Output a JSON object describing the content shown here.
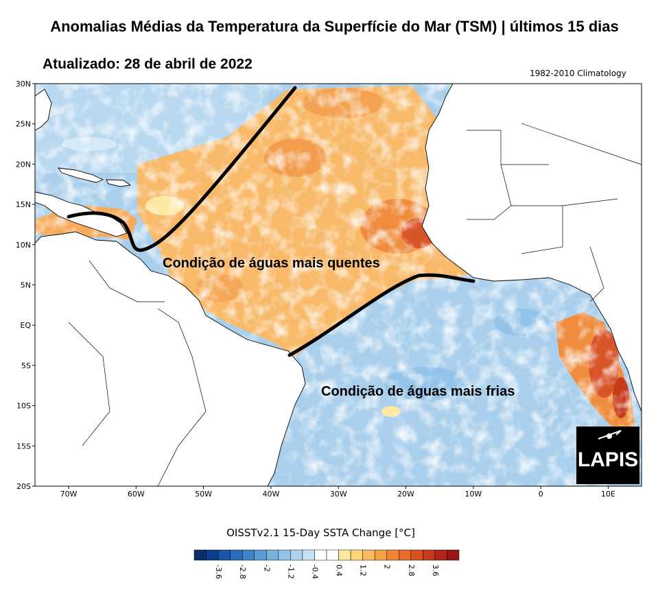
{
  "title": "Anomalias Médias da Temperatura da Superfície do Mar  (TSM) | últimos 15 dias",
  "updated": "Atualizado: 28 de abril de 2022",
  "climatology": "1982-2010 Climatology",
  "map": {
    "lon_labels": [
      "70W",
      "60W",
      "50W",
      "40W",
      "30W",
      "20W",
      "10W",
      "0",
      "10E"
    ],
    "lat_labels": [
      "30N",
      "25N",
      "20N",
      "15N",
      "10N",
      "5N",
      "EQ",
      "5S",
      "10S",
      "15S",
      "20S"
    ],
    "annotation_warm": "Condição de águas mais quentes",
    "annotation_cold": "Condição de águas mais frias",
    "logo_text": "LAPIS"
  },
  "colorbar": {
    "label": "OISSTv2.1 15-Day SSTA Change [°C]",
    "tick_labels": [
      "-3.6",
      "-2.8",
      "-2",
      "-1.2",
      "-0.4",
      "0.4",
      "1.2",
      "2",
      "2.8",
      "3.6"
    ],
    "colors": [
      "#08306b",
      "#0d3f8f",
      "#1a55a8",
      "#2a6cbd",
      "#3d84c8",
      "#5b9bd5",
      "#78b0de",
      "#93c3e8",
      "#aed3ee",
      "#c6e1f3",
      "#ffffff",
      "#ffffff",
      "#fde8a0",
      "#fbd47c",
      "#f9bb5c",
      "#f6a044",
      "#f08533",
      "#e66c28",
      "#d85221",
      "#c73b1d",
      "#b2261a",
      "#9a1616"
    ]
  }
}
